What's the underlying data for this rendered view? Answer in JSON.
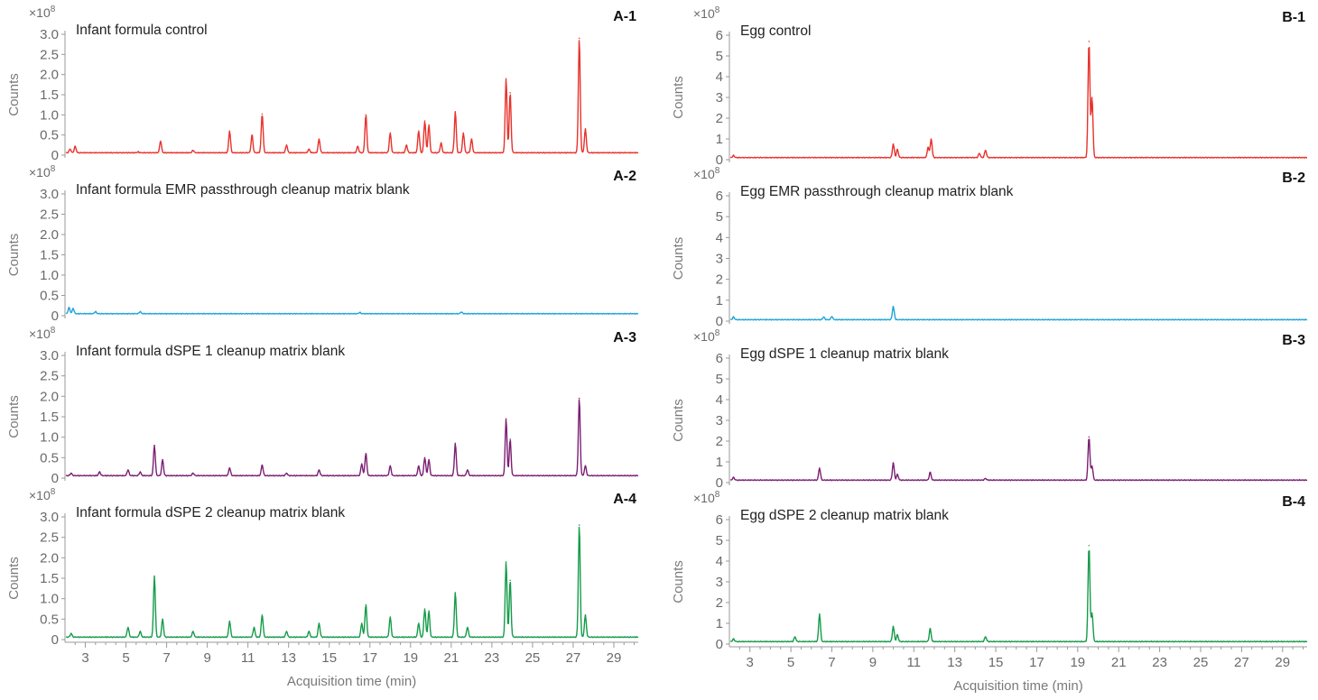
{
  "chart_data": [
    {
      "type": "line",
      "id": "A-1",
      "title": "Infant formula control",
      "ylabel": "Counts",
      "multiplier": "×10",
      "multiplier_exp": "8",
      "color": "#e8322b",
      "xlim": [
        2.0,
        30.2
      ],
      "ylim": [
        0,
        3.0
      ],
      "yticks": [
        "0",
        "0.5",
        "1.0",
        "1.5",
        "2.0",
        "2.5",
        "3.0"
      ],
      "yticks_values": [
        0,
        0.5,
        1.0,
        1.5,
        2.0,
        2.5,
        3.0
      ],
      "baseline": 0.06,
      "peaks": [
        [
          2.25,
          0.15
        ],
        [
          2.5,
          0.22
        ],
        [
          5.6,
          0.08
        ],
        [
          6.7,
          0.35
        ],
        [
          8.3,
          0.12
        ],
        [
          10.1,
          0.6
        ],
        [
          11.2,
          0.5
        ],
        [
          11.7,
          1.02
        ],
        [
          12.9,
          0.25
        ],
        [
          14.0,
          0.15
        ],
        [
          14.5,
          0.4
        ],
        [
          16.4,
          0.22
        ],
        [
          16.8,
          1.0
        ],
        [
          18.0,
          0.55
        ],
        [
          18.8,
          0.25
        ],
        [
          19.4,
          0.6
        ],
        [
          19.7,
          0.85
        ],
        [
          19.9,
          0.75
        ],
        [
          20.5,
          0.3
        ],
        [
          21.2,
          1.08
        ],
        [
          21.6,
          0.55
        ],
        [
          22.0,
          0.4
        ],
        [
          23.7,
          1.9
        ],
        [
          23.9,
          1.55
        ],
        [
          27.3,
          2.9
        ],
        [
          27.6,
          0.65
        ]
      ]
    },
    {
      "type": "line",
      "id": "A-2",
      "title": "Infant formula EMR passthrough cleanup matrix blank",
      "ylabel": "Counts",
      "multiplier": "×10",
      "multiplier_exp": "8",
      "color": "#1ea5d6",
      "xlim": [
        2.0,
        30.2
      ],
      "ylim": [
        0,
        3.0
      ],
      "yticks": [
        "0",
        "0.5",
        "1.0",
        "1.5",
        "2.0",
        "2.5",
        "3.0"
      ],
      "yticks_values": [
        0,
        0.5,
        1.0,
        1.5,
        2.0,
        2.5,
        3.0
      ],
      "baseline": 0.05,
      "peaks": [
        [
          2.2,
          0.2
        ],
        [
          2.4,
          0.18
        ],
        [
          3.5,
          0.1
        ],
        [
          5.7,
          0.1
        ],
        [
          16.5,
          0.08
        ],
        [
          21.5,
          0.09
        ]
      ]
    },
    {
      "type": "line",
      "id": "A-3",
      "title": "Infant formula dSPE 1 cleanup matrix blank",
      "ylabel": "Counts",
      "multiplier": "×10",
      "multiplier_exp": "8",
      "color": "#7b1f73",
      "xlim": [
        2.0,
        30.2
      ],
      "ylim": [
        0,
        3.0
      ],
      "yticks": [
        "0",
        "0.5",
        "1.0",
        "1.5",
        "2.0",
        "2.5",
        "3.0"
      ],
      "yticks_values": [
        0,
        0.5,
        1.0,
        1.5,
        2.0,
        2.5,
        3.0
      ],
      "baseline": 0.06,
      "peaks": [
        [
          2.3,
          0.12
        ],
        [
          3.7,
          0.15
        ],
        [
          5.1,
          0.2
        ],
        [
          5.7,
          0.15
        ],
        [
          6.4,
          0.8
        ],
        [
          6.8,
          0.45
        ],
        [
          8.3,
          0.12
        ],
        [
          10.1,
          0.25
        ],
        [
          11.7,
          0.32
        ],
        [
          12.9,
          0.12
        ],
        [
          14.5,
          0.2
        ],
        [
          16.6,
          0.35
        ],
        [
          16.8,
          0.6
        ],
        [
          18.0,
          0.3
        ],
        [
          19.4,
          0.3
        ],
        [
          19.7,
          0.5
        ],
        [
          19.9,
          0.45
        ],
        [
          21.2,
          0.85
        ],
        [
          21.8,
          0.2
        ],
        [
          23.7,
          1.45
        ],
        [
          23.9,
          0.95
        ],
        [
          27.3,
          1.95
        ],
        [
          27.6,
          0.3
        ]
      ]
    },
    {
      "type": "line",
      "id": "A-4",
      "title": "Infant formula dSPE 2 cleanup matrix blank",
      "ylabel": "Counts",
      "multiplier": "×10",
      "multiplier_exp": "8",
      "color": "#169b4a",
      "xlim": [
        2.0,
        30.2
      ],
      "ylim": [
        0,
        3.0
      ],
      "yticks": [
        "0",
        "0.5",
        "1.0",
        "1.5",
        "2.0",
        "2.5",
        "3.0"
      ],
      "yticks_values": [
        0,
        0.5,
        1.0,
        1.5,
        2.0,
        2.5,
        3.0
      ],
      "xticks": [
        "3",
        "5",
        "7",
        "9",
        "11",
        "13",
        "15",
        "17",
        "19",
        "21",
        "23",
        "25",
        "27",
        "29"
      ],
      "xticks_values": [
        3,
        5,
        7,
        9,
        11,
        13,
        15,
        17,
        19,
        21,
        23,
        25,
        27,
        29
      ],
      "xlabel": "Acquisition time (min)",
      "baseline": 0.06,
      "peaks": [
        [
          2.3,
          0.15
        ],
        [
          5.1,
          0.3
        ],
        [
          5.7,
          0.2
        ],
        [
          6.4,
          1.55
        ],
        [
          6.8,
          0.5
        ],
        [
          8.3,
          0.2
        ],
        [
          10.1,
          0.45
        ],
        [
          11.3,
          0.3
        ],
        [
          11.7,
          0.6
        ],
        [
          12.9,
          0.2
        ],
        [
          14.0,
          0.2
        ],
        [
          14.5,
          0.4
        ],
        [
          16.6,
          0.4
        ],
        [
          16.8,
          0.85
        ],
        [
          18.0,
          0.55
        ],
        [
          19.4,
          0.4
        ],
        [
          19.7,
          0.75
        ],
        [
          19.9,
          0.7
        ],
        [
          21.2,
          1.15
        ],
        [
          21.8,
          0.3
        ],
        [
          23.7,
          1.9
        ],
        [
          23.9,
          1.45
        ],
        [
          27.3,
          2.8
        ],
        [
          27.6,
          0.6
        ]
      ]
    },
    {
      "type": "line",
      "id": "B-1",
      "title": "Egg control",
      "ylabel": "Counts",
      "multiplier": "×10",
      "multiplier_exp": "8",
      "color": "#e8322b",
      "xlim": [
        2.0,
        30.2
      ],
      "ylim": [
        0,
        6
      ],
      "yticks": [
        "0",
        "1",
        "2",
        "3",
        "4",
        "5",
        "6"
      ],
      "yticks_values": [
        0,
        1,
        2,
        3,
        4,
        5,
        6
      ],
      "baseline": 0.1,
      "peaks": [
        [
          2.2,
          0.2
        ],
        [
          10.0,
          0.75
        ],
        [
          10.2,
          0.5
        ],
        [
          11.7,
          0.6
        ],
        [
          11.85,
          1.0
        ],
        [
          14.2,
          0.3
        ],
        [
          14.5,
          0.45
        ],
        [
          19.55,
          5.7
        ],
        [
          19.7,
          3.0
        ]
      ]
    },
    {
      "type": "line",
      "id": "B-2",
      "title": "Egg EMR passthrough cleanup matrix blank",
      "ylabel": "Counts",
      "multiplier": "×10",
      "multiplier_exp": "8",
      "color": "#1ea5d6",
      "xlim": [
        2.0,
        30.2
      ],
      "ylim": [
        0,
        6
      ],
      "yticks": [
        "0",
        "1",
        "2",
        "3",
        "4",
        "5",
        "6"
      ],
      "yticks_values": [
        0,
        1,
        2,
        3,
        4,
        5,
        6
      ],
      "baseline": 0.07,
      "peaks": [
        [
          2.2,
          0.2
        ],
        [
          6.6,
          0.2
        ],
        [
          7.0,
          0.22
        ],
        [
          10.0,
          0.7
        ]
      ]
    },
    {
      "type": "line",
      "id": "B-3",
      "title": "Egg dSPE 1 cleanup matrix blank",
      "ylabel": "Counts",
      "multiplier": "×10",
      "multiplier_exp": "8",
      "color": "#7b1f73",
      "xlim": [
        2.0,
        30.2
      ],
      "ylim": [
        0,
        6
      ],
      "yticks": [
        "0",
        "1",
        "2",
        "3",
        "4",
        "5",
        "6"
      ],
      "yticks_values": [
        0,
        1,
        2,
        3,
        4,
        5,
        6
      ],
      "baseline": 0.12,
      "peaks": [
        [
          2.2,
          0.25
        ],
        [
          6.4,
          0.7
        ],
        [
          10.0,
          0.95
        ],
        [
          10.2,
          0.4
        ],
        [
          11.8,
          0.5
        ],
        [
          14.5,
          0.2
        ],
        [
          19.55,
          2.2
        ],
        [
          19.7,
          0.8
        ]
      ]
    },
    {
      "type": "line",
      "id": "B-4",
      "title": "Egg dSPE 2 cleanup matrix blank",
      "ylabel": "Counts",
      "multiplier": "×10",
      "multiplier_exp": "8",
      "color": "#169b4a",
      "xlim": [
        2.0,
        30.2
      ],
      "ylim": [
        0,
        6
      ],
      "yticks": [
        "0",
        "1",
        "2",
        "3",
        "4",
        "5",
        "6"
      ],
      "yticks_values": [
        0,
        1,
        2,
        3,
        4,
        5,
        6
      ],
      "xticks": [
        "3",
        "5",
        "7",
        "9",
        "11",
        "13",
        "15",
        "17",
        "19",
        "21",
        "23",
        "25",
        "27",
        "29"
      ],
      "xticks_values": [
        3,
        5,
        7,
        9,
        11,
        13,
        15,
        17,
        19,
        21,
        23,
        25,
        27,
        29
      ],
      "xlabel": "Acquisition time (min)",
      "baseline": 0.12,
      "peaks": [
        [
          2.2,
          0.25
        ],
        [
          5.2,
          0.35
        ],
        [
          6.4,
          1.45
        ],
        [
          10.0,
          0.85
        ],
        [
          10.2,
          0.45
        ],
        [
          11.8,
          0.75
        ],
        [
          14.5,
          0.35
        ],
        [
          19.55,
          4.75
        ],
        [
          19.7,
          1.5
        ]
      ]
    }
  ]
}
